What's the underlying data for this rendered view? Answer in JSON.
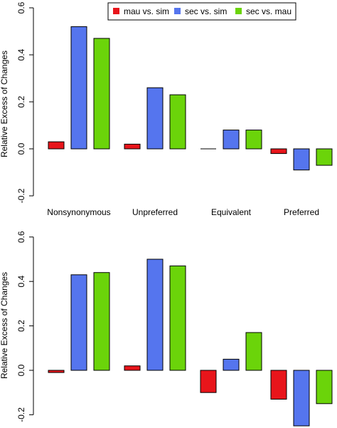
{
  "legend": {
    "position": "top-center",
    "items": [
      {
        "label": "mau vs. sim",
        "color": "#e8151b"
      },
      {
        "label": "sec vs. sim",
        "color": "#5575ee"
      },
      {
        "label": "sec vs. mau",
        "color": "#6bd40a"
      }
    ]
  },
  "chart_data": [
    {
      "type": "bar",
      "title": "",
      "xlabel": "",
      "ylabel": "Relative Excess of Changes",
      "ylim": [
        -0.2,
        0.6
      ],
      "yticks": [
        "-0.2",
        "0.0",
        "0.2",
        "0.4",
        "0.6"
      ],
      "grid": false,
      "categories": [
        "Nonsynonymous",
        "Unpreferred",
        "Equivalent",
        "Preferred"
      ],
      "series": [
        {
          "name": "mau vs. sim",
          "color": "#e8151b",
          "values": [
            0.03,
            0.02,
            0.0,
            -0.02
          ]
        },
        {
          "name": "sec vs. sim",
          "color": "#5575ee",
          "values": [
            0.52,
            0.26,
            0.08,
            -0.09
          ]
        },
        {
          "name": "sec vs. mau",
          "color": "#6bd40a",
          "values": [
            0.47,
            0.23,
            0.08,
            -0.07
          ]
        }
      ]
    },
    {
      "type": "bar",
      "title": "",
      "xlabel": "",
      "ylabel": "Relative Excess of Changes",
      "ylim": [
        -0.2,
        0.6
      ],
      "yticks": [
        "-0.2",
        "0.0",
        "0.2",
        "0.4",
        "0.6"
      ],
      "grid": false,
      "categories": [
        "",
        "",
        "",
        ""
      ],
      "series": [
        {
          "name": "mau vs. sim",
          "color": "#e8151b",
          "values": [
            -0.01,
            0.02,
            -0.1,
            -0.13
          ]
        },
        {
          "name": "sec vs. sim",
          "color": "#5575ee",
          "values": [
            0.43,
            0.5,
            0.05,
            -0.25
          ]
        },
        {
          "name": "sec vs. mau",
          "color": "#6bd40a",
          "values": [
            0.44,
            0.47,
            0.17,
            -0.15
          ]
        }
      ]
    }
  ]
}
